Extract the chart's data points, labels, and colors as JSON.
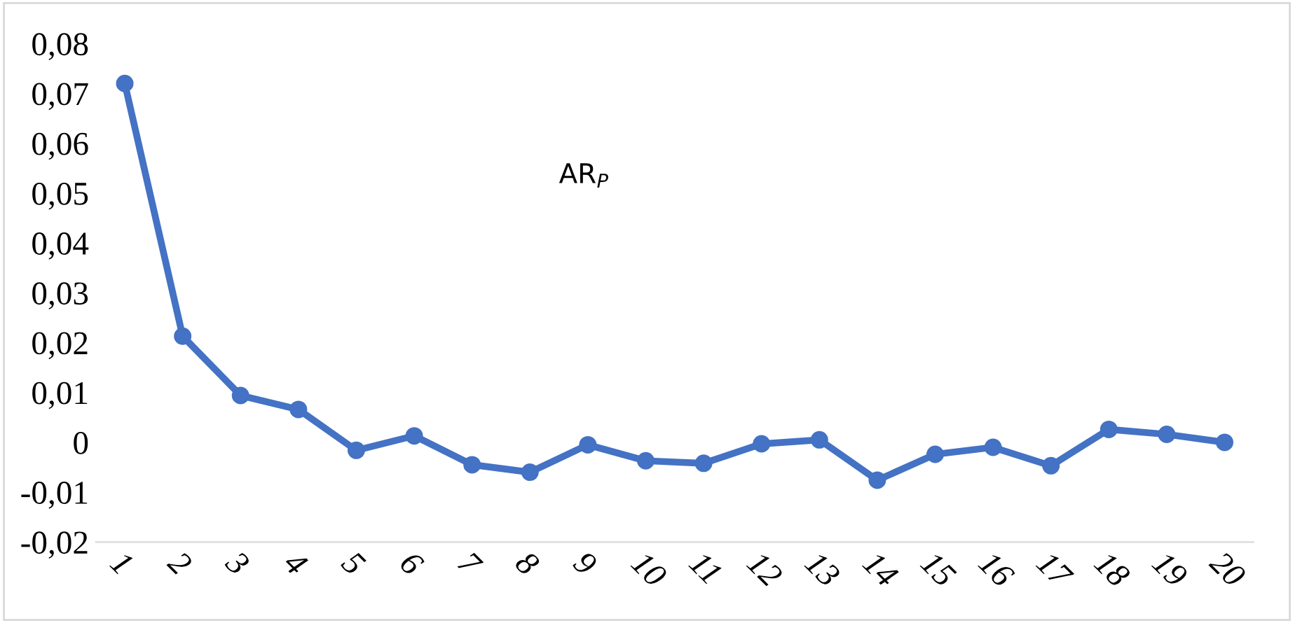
{
  "chart_data": {
    "type": "line",
    "categories": [
      "1",
      "2",
      "3",
      "4",
      "5",
      "6",
      "7",
      "8",
      "9",
      "10",
      "11",
      "12",
      "13",
      "14",
      "15",
      "16",
      "17",
      "18",
      "19",
      "20"
    ],
    "series": [
      {
        "color": "#4472c4",
        "values": [
          0.072,
          0.0213,
          0.0094,
          0.0066,
          -0.0016,
          0.0013,
          -0.0045,
          -0.006,
          -0.0005,
          -0.0037,
          -0.0042,
          -0.0003,
          0.0005,
          -0.0076,
          -0.0024,
          -0.001,
          -0.0047,
          0.0026,
          0.0016,
          0.0
        ]
      }
    ],
    "ylim": [
      -0.02,
      0.08
    ],
    "yticks": [
      {
        "value": -0.02,
        "label": "-0,02"
      },
      {
        "value": -0.01,
        "label": "-0,01"
      },
      {
        "value": 0,
        "label": "0"
      },
      {
        "value": 0.01,
        "label": "0,01"
      },
      {
        "value": 0.02,
        "label": "0,02"
      },
      {
        "value": 0.03,
        "label": "0,03"
      },
      {
        "value": 0.04,
        "label": "0,04"
      },
      {
        "value": 0.05,
        "label": "0,05"
      },
      {
        "value": 0.06,
        "label": "0,06"
      },
      {
        "value": 0.07,
        "label": "0,07"
      },
      {
        "value": 0.08,
        "label": "0,08"
      }
    ],
    "annotations": [
      "AR$_{P}$"
    ],
    "marker": "circle",
    "line_style": "solid",
    "grid": false
  }
}
